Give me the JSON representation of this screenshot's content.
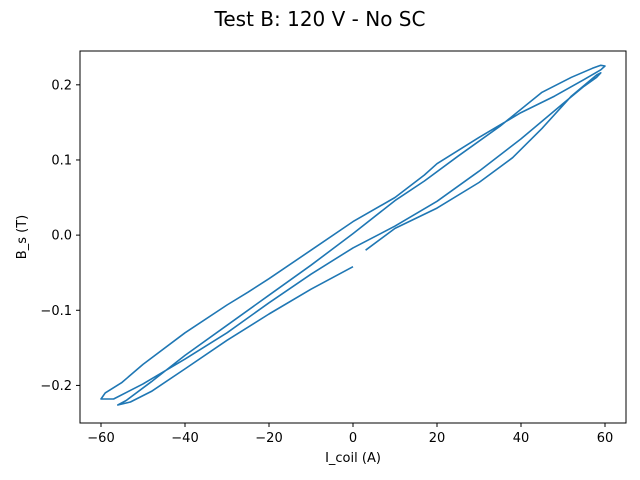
{
  "chart_data": {
    "type": "line",
    "title": "Test B: 120 V - No SC",
    "xlabel": "I_coil (A)",
    "ylabel": "B_s (T)",
    "xlim": [
      -65,
      65
    ],
    "ylim": [
      -0.25,
      0.245
    ],
    "xticks": [
      -60,
      -40,
      -20,
      0,
      20,
      40,
      60
    ],
    "yticks": [
      -0.2,
      -0.1,
      0.0,
      0.1,
      0.2
    ],
    "xtick_labels": [
      "−60",
      "−40",
      "−20",
      "0",
      "20",
      "40",
      "60"
    ],
    "ytick_labels": [
      "−0.2",
      "−0.1",
      "0.0",
      "0.1",
      "0.2"
    ],
    "grid": false,
    "legend": "none",
    "series": [
      {
        "color": "#1f77b4",
        "x": [
          0,
          -10,
          -20,
          -30,
          -40,
          -48,
          -53,
          -56,
          -54,
          -48,
          -40,
          -30,
          -20,
          -10,
          0,
          10,
          17,
          25,
          35,
          45,
          52,
          57,
          59,
          60,
          59,
          55,
          48,
          40,
          30,
          20,
          17,
          10,
          0,
          -10,
          -20,
          -25,
          -30,
          -40,
          -50,
          -55,
          -59,
          -60,
          -57,
          -50,
          -40,
          -30,
          -20,
          -10,
          0,
          10,
          20,
          30,
          40,
          50,
          55,
          58,
          59,
          58,
          52,
          45,
          38,
          30,
          20,
          10,
          3
        ],
        "y": [
          -0.042,
          -0.072,
          -0.105,
          -0.14,
          -0.178,
          -0.208,
          -0.222,
          -0.226,
          -0.22,
          -0.195,
          -0.16,
          -0.12,
          -0.08,
          -0.04,
          0.002,
          0.046,
          0.072,
          0.105,
          0.145,
          0.19,
          0.21,
          0.222,
          0.226,
          0.225,
          0.22,
          0.207,
          0.185,
          0.163,
          0.13,
          0.095,
          0.08,
          0.05,
          0.018,
          -0.02,
          -0.058,
          -0.076,
          -0.093,
          -0.13,
          -0.172,
          -0.196,
          -0.21,
          -0.218,
          -0.218,
          -0.198,
          -0.165,
          -0.13,
          -0.09,
          -0.052,
          -0.017,
          0.012,
          0.045,
          0.085,
          0.128,
          0.175,
          0.198,
          0.21,
          0.216,
          0.213,
          0.185,
          0.142,
          0.103,
          0.07,
          0.036,
          0.009,
          -0.02
        ]
      }
    ]
  }
}
